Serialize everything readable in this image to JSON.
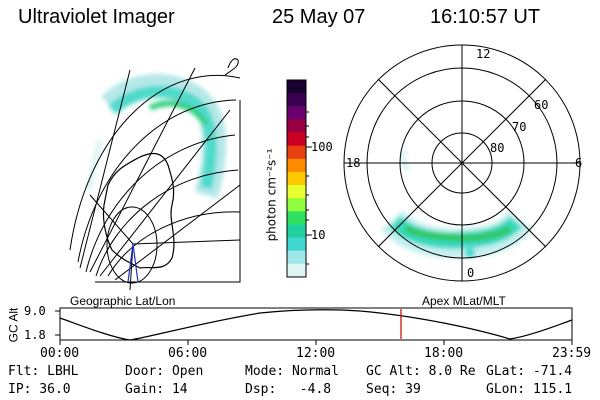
{
  "header": {
    "instrument": "Ultraviolet Imager",
    "date": "25 May 07",
    "time": "16:10:57 UT"
  },
  "geo_panel": {
    "caption": "Geographic Lat/Lon"
  },
  "colorbar": {
    "label": "photon cm⁻²s⁻¹",
    "ticks": [
      "100",
      "10"
    ],
    "colors": [
      "#1a0030",
      "#3a0050",
      "#6a0070",
      "#9a0040",
      "#cc0020",
      "#e84010",
      "#ff8c00",
      "#ffc800",
      "#e8ff30",
      "#90ff40",
      "#30e060",
      "#20d0a0",
      "#40d8d0",
      "#a0e8e8",
      "#e0f4f4"
    ]
  },
  "polar_panel": {
    "caption": "Apex MLat/MLT",
    "mlt_labels": [
      "12",
      "18",
      "6",
      "0"
    ],
    "lat_labels": [
      "60",
      "70",
      "80"
    ]
  },
  "altitude_plot": {
    "label": "GC Alt",
    "y_ticks": [
      "9.0",
      "1.8"
    ],
    "x_ticks": [
      "00:00",
      "06:00",
      "12:00",
      "18:00",
      "23:59"
    ],
    "marker_color": "#cc0000"
  },
  "status": {
    "flt": "Flt: LBHL",
    "door": "Door: Open",
    "mode": "Mode: Normal",
    "gc_alt": "GC Alt: 8.0 Re",
    "glat": "GLat: -71.4",
    "ip": "IP: 36.0",
    "gain": "Gain: 14",
    "dsp": "Dsp:   -4.8",
    "seq": "Seq: 39",
    "glon": "GLon: 115.1"
  }
}
